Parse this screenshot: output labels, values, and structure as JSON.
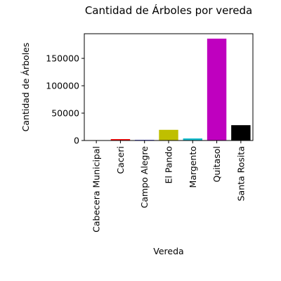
{
  "chart_data": {
    "type": "bar",
    "title": "Cantidad de Árboles por vereda",
    "xlabel": "Vereda",
    "ylabel": "Cantidad de Árboles",
    "categories": [
      "Cabecera Municipal",
      "Caceri",
      "Campo Alegre",
      "El Pando",
      "Margento",
      "Quitasol",
      "Santa Rosita"
    ],
    "values": [
      300,
      2500,
      1000,
      19500,
      3800,
      186000,
      28000
    ],
    "colors": [
      "#1f77b4",
      "#ff0000",
      "#0000ff",
      "#bfbf00",
      "#17becf",
      "#bf00bf",
      "#000000"
    ],
    "ylim": [
      0,
      195000
    ],
    "yticks": [
      0,
      50000,
      100000,
      150000
    ],
    "ytick_labels": [
      "0",
      "50000",
      "100000",
      "150000"
    ],
    "grid": false,
    "legend": "none"
  }
}
